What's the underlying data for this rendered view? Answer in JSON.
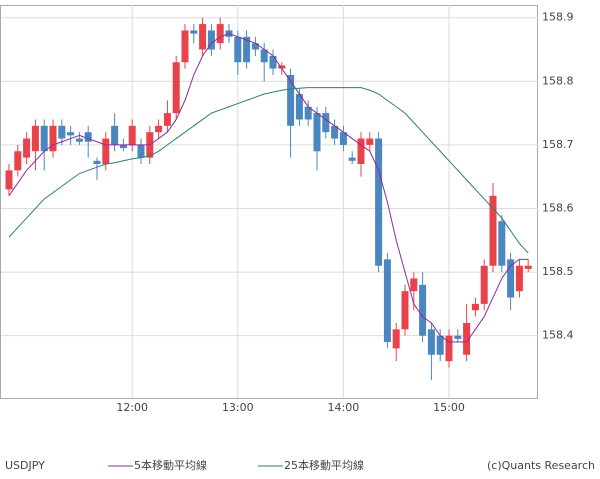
{
  "chart_data": {
    "type": "candlestick",
    "symbol": "USDJPY",
    "credit": "(c)Quants Research",
    "x": [
      "10:50",
      "10:55",
      "11:00",
      "11:05",
      "11:10",
      "11:15",
      "11:20",
      "11:25",
      "11:30",
      "11:35",
      "11:40",
      "11:45",
      "11:50",
      "11:55",
      "12:00",
      "12:05",
      "12:10",
      "12:15",
      "12:20",
      "12:25",
      "12:30",
      "12:35",
      "12:40",
      "12:45",
      "12:50",
      "12:55",
      "13:00",
      "13:05",
      "13:10",
      "13:15",
      "13:20",
      "13:25",
      "13:30",
      "13:35",
      "13:40",
      "13:45",
      "13:50",
      "13:55",
      "14:00",
      "14:05",
      "14:10",
      "14:15",
      "14:20",
      "14:25",
      "14:30",
      "14:35",
      "14:40",
      "14:45",
      "14:50",
      "14:55",
      "15:00",
      "15:05",
      "15:10",
      "15:15",
      "15:20",
      "15:25",
      "15:30",
      "15:35",
      "15:40",
      "15:45"
    ],
    "open": [
      158.63,
      158.66,
      158.68,
      158.69,
      158.73,
      158.69,
      158.73,
      158.72,
      158.71,
      158.72,
      158.675,
      158.67,
      158.73,
      158.7,
      158.7,
      158.7,
      158.68,
      158.72,
      158.73,
      158.75,
      158.83,
      158.88,
      158.85,
      158.88,
      158.86,
      158.88,
      158.87,
      158.87,
      158.86,
      158.85,
      158.84,
      158.82,
      158.81,
      158.78,
      158.76,
      158.75,
      158.75,
      158.73,
      158.72,
      158.68,
      158.67,
      158.7,
      158.71,
      158.52,
      158.38,
      158.41,
      158.47,
      158.48,
      158.41,
      158.4,
      158.36,
      158.4,
      158.37,
      158.44,
      158.45,
      158.51,
      158.58,
      158.52,
      158.47,
      158.505
    ],
    "high": [
      158.67,
      158.7,
      158.72,
      158.74,
      158.74,
      158.74,
      158.74,
      158.73,
      158.72,
      158.73,
      158.68,
      158.72,
      158.75,
      158.71,
      158.74,
      158.71,
      158.73,
      158.74,
      158.77,
      158.84,
      158.89,
      158.89,
      158.9,
      158.89,
      158.9,
      158.89,
      158.88,
      158.88,
      158.87,
      158.86,
      158.85,
      158.83,
      158.82,
      158.79,
      158.77,
      158.76,
      158.76,
      158.74,
      158.73,
      158.69,
      158.72,
      158.72,
      158.72,
      158.53,
      158.42,
      158.48,
      158.5,
      158.5,
      158.42,
      158.41,
      158.41,
      158.41,
      158.45,
      158.46,
      158.52,
      158.64,
      158.59,
      158.53,
      158.52,
      158.52
    ],
    "low": [
      158.62,
      158.65,
      158.67,
      158.66,
      158.66,
      158.68,
      158.7,
      158.7,
      158.7,
      158.68,
      158.645,
      158.66,
      158.69,
      158.69,
      158.69,
      158.67,
      158.67,
      158.71,
      158.72,
      158.74,
      158.82,
      158.86,
      158.84,
      158.84,
      158.85,
      158.86,
      158.81,
      158.82,
      158.84,
      158.8,
      158.81,
      158.81,
      158.68,
      158.73,
      158.73,
      158.66,
      158.71,
      158.7,
      158.69,
      158.67,
      158.65,
      158.69,
      158.5,
      158.38,
      158.36,
      158.4,
      158.44,
      158.39,
      158.33,
      158.36,
      158.35,
      158.39,
      158.36,
      158.43,
      158.44,
      158.5,
      158.5,
      158.44,
      158.46,
      158.5
    ],
    "close": [
      158.66,
      158.69,
      158.71,
      158.73,
      158.69,
      158.73,
      158.71,
      158.715,
      158.705,
      158.705,
      158.67,
      158.71,
      158.7,
      158.695,
      158.73,
      158.68,
      158.72,
      158.73,
      158.75,
      158.83,
      158.88,
      158.875,
      158.89,
      158.85,
      158.89,
      158.87,
      158.83,
      158.83,
      158.85,
      158.83,
      158.82,
      158.825,
      158.73,
      158.74,
      158.74,
      158.69,
      158.72,
      158.71,
      158.7,
      158.675,
      158.71,
      158.71,
      158.51,
      158.39,
      158.41,
      158.47,
      158.49,
      158.4,
      158.37,
      158.37,
      158.4,
      158.395,
      158.42,
      158.45,
      158.51,
      158.62,
      158.51,
      158.46,
      158.51,
      158.51
    ],
    "up_color": "#e8434a",
    "down_color": "#4a86c0",
    "lines": [
      {
        "name": "5本移動平均線",
        "color": "#8e2a9a",
        "values": [
          158.62,
          158.64,
          158.66,
          158.675,
          158.69,
          158.7,
          158.705,
          158.71,
          158.715,
          158.71,
          158.705,
          158.7,
          158.7,
          158.7,
          158.7,
          158.7,
          158.7,
          158.71,
          158.72,
          158.74,
          158.77,
          158.81,
          158.84,
          158.86,
          158.87,
          158.875,
          158.87,
          158.865,
          158.86,
          158.85,
          158.84,
          158.82,
          158.8,
          158.78,
          158.76,
          158.75,
          158.74,
          158.73,
          158.72,
          158.71,
          158.7,
          158.69,
          158.66,
          158.61,
          158.55,
          158.5,
          158.45,
          158.43,
          158.42,
          158.4,
          158.39,
          158.39,
          158.39,
          158.41,
          158.43,
          158.46,
          158.49,
          158.51,
          158.52,
          158.52
        ]
      },
      {
        "name": "25本移動平均線",
        "color": "#2d7d7a",
        "values": [
          158.555,
          158.57,
          158.585,
          158.6,
          158.615,
          158.625,
          158.635,
          158.645,
          158.655,
          158.66,
          158.665,
          158.67,
          158.672,
          158.675,
          158.678,
          158.68,
          158.683,
          158.69,
          158.7,
          158.71,
          158.72,
          158.73,
          158.74,
          158.75,
          158.755,
          158.76,
          158.765,
          158.77,
          158.775,
          158.78,
          158.783,
          158.786,
          158.788,
          158.789,
          158.79,
          158.79,
          158.79,
          158.79,
          158.79,
          158.79,
          158.79,
          158.786,
          158.78,
          158.77,
          158.76,
          158.75,
          158.735,
          158.72,
          158.705,
          158.69,
          158.675,
          158.66,
          158.645,
          158.63,
          158.615,
          158.6,
          158.585,
          158.565,
          158.545,
          158.53
        ]
      }
    ],
    "ylim": [
      158.302,
      158.92
    ],
    "yticks": [
      158.4,
      158.5,
      158.6,
      158.7,
      158.8,
      158.9
    ],
    "xticks": [
      "12:00",
      "13:00",
      "14:00",
      "15:00"
    ],
    "grid": true
  }
}
